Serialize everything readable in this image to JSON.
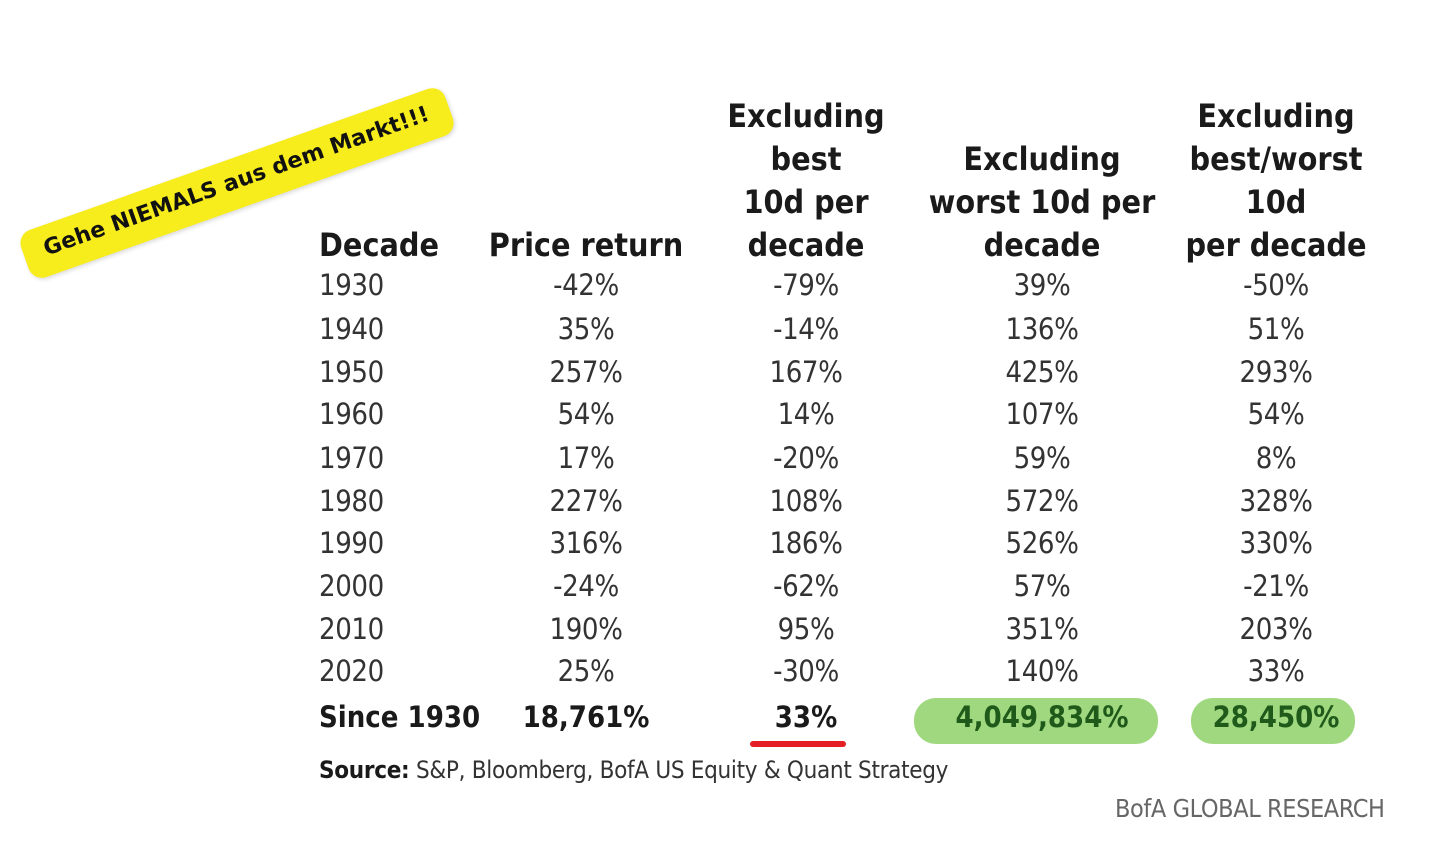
{
  "sticker": {
    "text": "Gehe NIEMALS aus dem Markt!!!",
    "color": "#f7ec1c"
  },
  "chart_data": {
    "type": "table",
    "columns": [
      {
        "key": "decade",
        "lines": [
          "Decade"
        ]
      },
      {
        "key": "price_return",
        "lines": [
          "Price return"
        ]
      },
      {
        "key": "ex_best",
        "lines": [
          "Excluding",
          "best",
          "10d per",
          "decade"
        ]
      },
      {
        "key": "ex_worst",
        "lines": [
          "Excluding",
          "worst 10d per",
          "decade"
        ]
      },
      {
        "key": "ex_both",
        "lines": [
          "Excluding",
          "best/worst",
          "10d",
          "per decade"
        ]
      }
    ],
    "rows": [
      [
        "1930",
        "-42%",
        "-79%",
        "39%",
        "-50%"
      ],
      [
        "1940",
        "35%",
        "-14%",
        "136%",
        "51%"
      ],
      [
        "1950",
        "257%",
        "167%",
        "425%",
        "293%"
      ],
      [
        "1960",
        "54%",
        "14%",
        "107%",
        "54%"
      ],
      [
        "1970",
        "17%",
        "-20%",
        "59%",
        "8%"
      ],
      [
        "1980",
        "227%",
        "108%",
        "572%",
        "328%"
      ],
      [
        "1990",
        "316%",
        "186%",
        "526%",
        "330%"
      ],
      [
        "2000",
        "-24%",
        "-62%",
        "57%",
        "-21%"
      ],
      [
        "2010",
        "190%",
        "95%",
        "351%",
        "203%"
      ],
      [
        "2020",
        "25%",
        "-30%",
        "140%",
        "33%"
      ]
    ],
    "total": [
      "Since 1930",
      "18,761%",
      "33%",
      "4,049,834%",
      "28,450%"
    ],
    "highlight_colors": {
      "green": "#8fd16a",
      "red_underline": "#e41e25"
    }
  },
  "source": {
    "label": "Source:",
    "text": "S&P,  Bloomberg, BofA US Equity & Quant Strategy"
  },
  "brand": "BofA GLOBAL RESEARCH"
}
